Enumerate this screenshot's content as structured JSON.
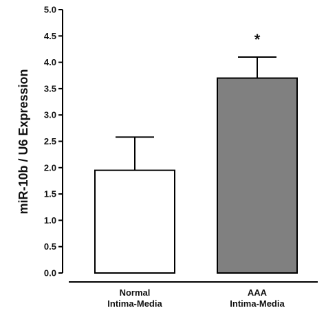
{
  "chart_data": {
    "type": "bar",
    "title": "",
    "xlabel": "",
    "ylabel": "miR-10b / U6 Expression",
    "ylim": [
      0,
      5
    ],
    "yticks": [
      "0.0",
      "0.5",
      "1.0",
      "1.5",
      "2.0",
      "2.5",
      "3.0",
      "3.5",
      "4.0",
      "4.5",
      "5.0"
    ],
    "categories": [
      [
        "Normal",
        "Intima-Media"
      ],
      [
        "AAA",
        "Intima-Media"
      ]
    ],
    "values": [
      1.95,
      3.7
    ],
    "errors": [
      0.63,
      0.4
    ],
    "bar_colors": [
      "#ffffff",
      "#808080"
    ],
    "annotations": [
      "",
      "*"
    ],
    "grid": false,
    "legend": "none"
  }
}
